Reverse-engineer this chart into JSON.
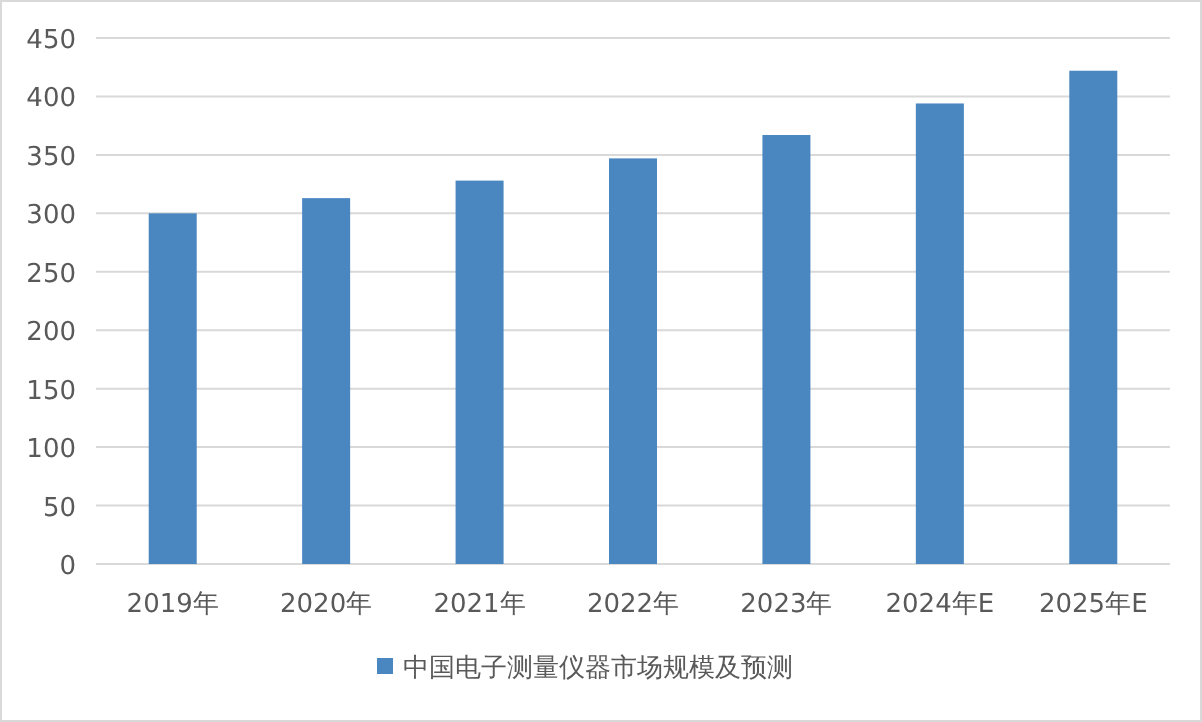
{
  "chart_data": {
    "type": "bar",
    "categories": [
      "2019年",
      "2020年",
      "2021年",
      "2022年",
      "2023年",
      "2024年E",
      "2025年E"
    ],
    "series": [
      {
        "name": "中国电子测量仪器市场规模及预测",
        "color": "#4a86c0",
        "values": [
          300,
          313,
          328,
          347,
          367,
          394,
          422
        ]
      }
    ],
    "ylim": [
      0,
      450
    ],
    "yticks": [
      0,
      50,
      100,
      150,
      200,
      250,
      300,
      350,
      400,
      450
    ],
    "grid": "y",
    "legend": "bottom"
  }
}
